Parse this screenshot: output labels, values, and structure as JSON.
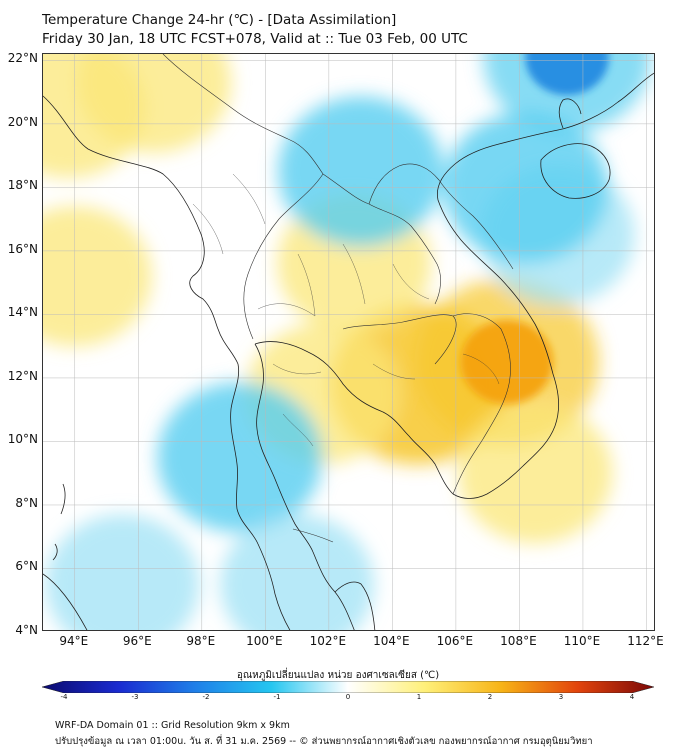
{
  "header": {
    "title_line1": "Temperature Change 24-hr (℃) - [Data Assimilation]",
    "title_line2": "Friday 30 Jan, 18 UTC FCST+078, Valid at :: Tue 03 Feb, 00 UTC"
  },
  "map": {
    "lat_labels": [
      "22°N",
      "20°N",
      "18°N",
      "16°N",
      "14°N",
      "12°N",
      "10°N",
      "8°N",
      "6°N",
      "4°N"
    ],
    "lon_labels": [
      "94°E",
      "96°E",
      "98°E",
      "100°E",
      "102°E",
      "104°E",
      "106°E",
      "108°E",
      "110°E",
      "112°E"
    ],
    "lat_range": [
      4,
      22.2
    ],
    "lon_range": [
      93,
      112.3
    ],
    "field_regions": [
      {
        "name": "cambodia-vietnam-warm-core",
        "lon": 107.6,
        "lat": 12.5,
        "level": "warm-strong"
      },
      {
        "name": "tonle-sap-warm",
        "lon": 104.8,
        "lat": 11.8,
        "level": "warm-moderate"
      },
      {
        "name": "upper-myanmar-warm",
        "lon": 96.5,
        "lat": 21.3,
        "level": "warm-light"
      },
      {
        "name": "west-myanmar-warm",
        "lon": 93.8,
        "lat": 20.5,
        "level": "warm-light"
      },
      {
        "name": "andaman-sea-warm",
        "lon": 94.0,
        "lat": 15.2,
        "level": "warm-light"
      },
      {
        "name": "gulf-of-thailand-warm",
        "lon": 101.8,
        "lat": 11.5,
        "level": "warm-light"
      },
      {
        "name": "south-china-sea-warm",
        "lon": 108.5,
        "lat": 9.0,
        "level": "warm-light"
      },
      {
        "name": "ne-thailand-warm",
        "lon": 102.8,
        "lat": 15.6,
        "level": "warm-light"
      },
      {
        "name": "southern-gulf-of-tonkin-cool",
        "lon": 109.2,
        "lat": 16.5,
        "level": "cool-light"
      },
      {
        "name": "guangxi-cold",
        "lon": 109.5,
        "lat": 22.1,
        "level": "cool-strong"
      },
      {
        "name": "gulf-of-tonkin-cold",
        "lon": 108.2,
        "lat": 18.0,
        "level": "cool-moderate"
      },
      {
        "name": "laos-cold",
        "lon": 103.0,
        "lat": 18.5,
        "level": "cool-moderate"
      },
      {
        "name": "peninsula-cold",
        "lon": 99.2,
        "lat": 9.5,
        "level": "cool-moderate"
      },
      {
        "name": "malaysia-cold",
        "lon": 101.0,
        "lat": 5.5,
        "level": "cool-light"
      },
      {
        "name": "sumatra-cold",
        "lon": 95.5,
        "lat": 5.5,
        "level": "cool-light"
      }
    ]
  },
  "colorbar": {
    "title": "อุณหภูมิเปลี่ยนแปลง หน่วย องศาเซลเซียส (℃)",
    "ticks": [
      "-4",
      "-3",
      "-2",
      "-1",
      "0",
      "1",
      "2",
      "3",
      "4"
    ],
    "range": [
      -4,
      4
    ],
    "colors": [
      "#0b0a6e",
      "#1a2bd0",
      "#1f7fe8",
      "#25c6f0",
      "#ffffff",
      "#fff07a",
      "#f7b417",
      "#e2440c",
      "#7a0808"
    ]
  },
  "footer": {
    "line1": "WRF-DA Domain 01 :: Grid Resolution 9km x 9km",
    "line2": "ปรับปรุงข้อมูล ณ เวลา 01:00u. วัน ส. ที่ 31 ม.ค. 2569 -- © ส่วนพยากรณ์อากาศเชิงตัวเลข กองพยากรณ์อากาศ กรมอุตุนิยมวิทยา"
  }
}
